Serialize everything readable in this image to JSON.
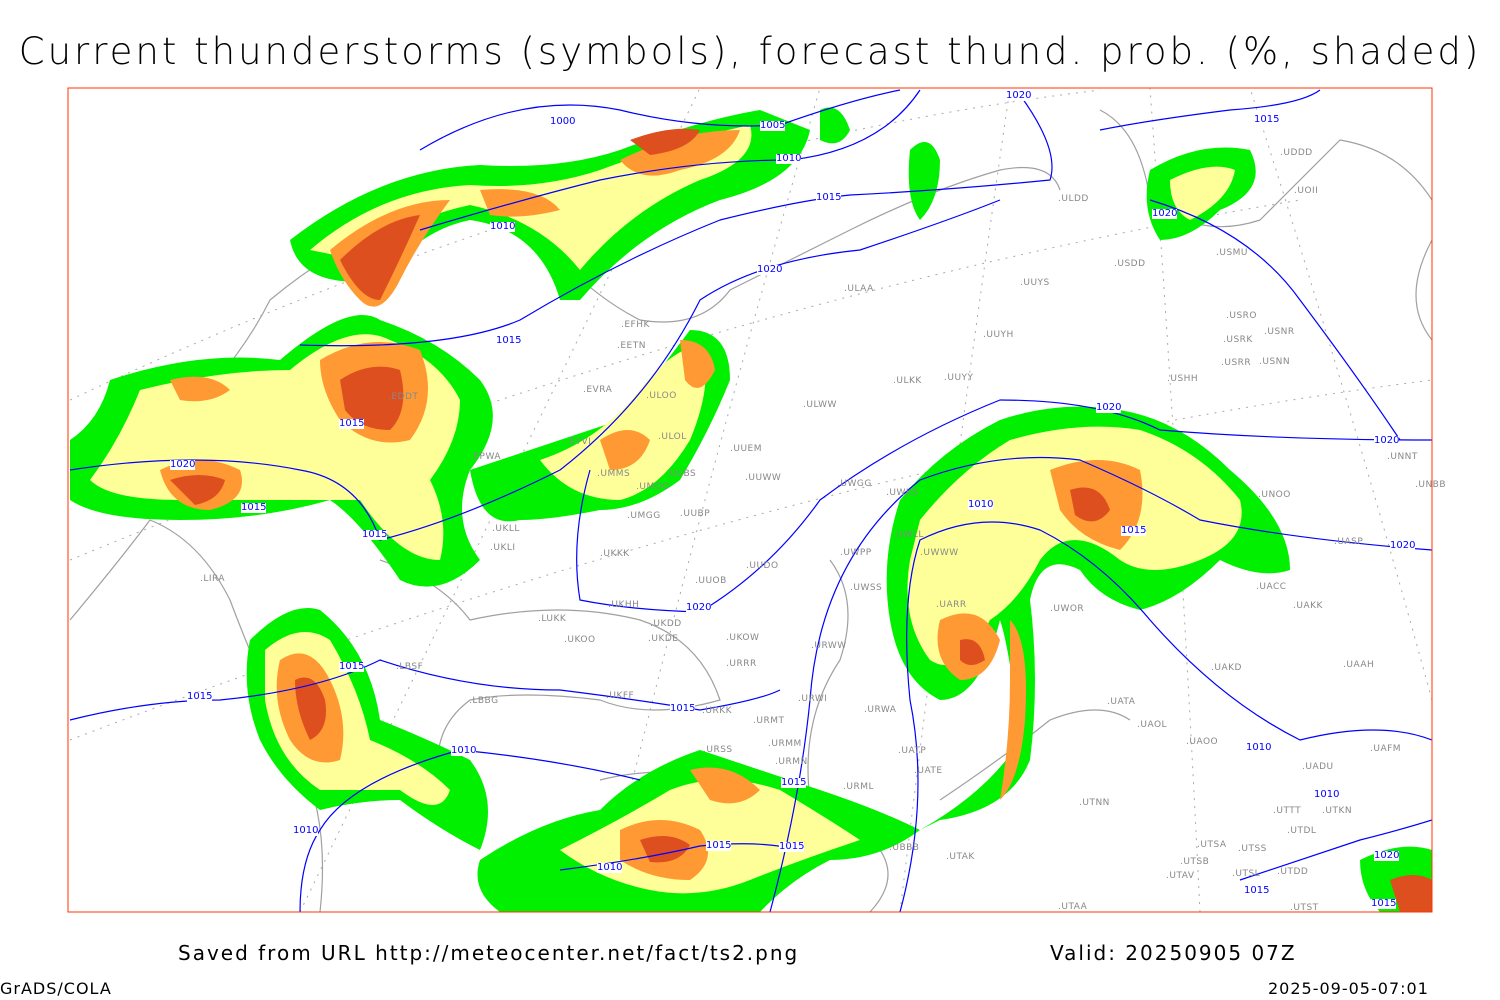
{
  "title": "Current thunderstorms (symbols), forecast thund. prob. (%, shaded)",
  "footer": {
    "source": "Saved from URL http://meteocenter.net/fact/ts2.png",
    "valid": "Valid: 20250905 07Z",
    "software": "GrADS/COLA",
    "timestamp": "2025-09-05-07:01"
  },
  "colors": {
    "prob_low": "#00f000",
    "prob_mid": "#ffff99",
    "prob_high": "#ff9933",
    "prob_max": "#dd4f1f",
    "isobar": "#0000ff",
    "coast": "#a0a0a0",
    "frame": "#ff3300"
  },
  "isobar_labels": [
    "1000",
    "1005",
    "1010",
    "1015",
    "1010",
    "1015",
    "1020",
    "1020",
    "1015",
    "1020",
    "1020",
    "1020",
    "1020",
    "1015",
    "1010",
    "1015",
    "1020",
    "1015",
    "1015",
    "1020",
    "1015",
    "1015",
    "1010",
    "1015",
    "1010",
    "1015",
    "1015",
    "1015",
    "1010",
    "1010",
    "1010",
    "1020",
    "1015",
    "1015"
  ],
  "stations": [
    "UDDD",
    "UOII",
    "ULDD",
    "USDD",
    "USMU",
    "UUYS",
    "ULAA",
    "USRO",
    "USRK",
    "USNR",
    "USRR",
    "USNN",
    "UUYH",
    "EFHK",
    "EETN",
    "USHH",
    "ULKK",
    "UUYY",
    "EVRA",
    "ULOO",
    "ULWW",
    "EPWA",
    "EYVI",
    "ULOL",
    "UUEM",
    "UMMS",
    "UUBS",
    "UMOO",
    "UUWW",
    "UWGG",
    "UWKS",
    "UNOO",
    "UNBB",
    "UNNT",
    "UMGG",
    "UUBP",
    "UKLL",
    "UKLI",
    "UWLL",
    "UWWW",
    "UASP",
    "UKKK",
    "UWPP",
    "UUDO",
    "UUOB",
    "UWSS",
    "UACC",
    "UKHH",
    "UKDD",
    "UARR",
    "UWOR",
    "UAKK",
    "LUKK",
    "UKOO",
    "UKDE",
    "UKOW",
    "URWW",
    "URRR",
    "LBSF",
    "UAKD",
    "UAAH",
    "LBBG",
    "UKFF",
    "URKK",
    "URWI",
    "URWA",
    "URMT",
    "UATA",
    "UAOL",
    "UAOO",
    "URSS",
    "URMM",
    "UATP",
    "UATE",
    "URMN",
    "UAFM",
    "UADU",
    "URML",
    "UTNN",
    "UTTT",
    "UTKN",
    "UTDL",
    "UBBB",
    "UTSA",
    "UTSS",
    "UTSB",
    "UTAK",
    "UTAV",
    "UTSL",
    "UTDD",
    "UTAA",
    "UTST",
    "LIRA",
    "EDDT"
  ]
}
